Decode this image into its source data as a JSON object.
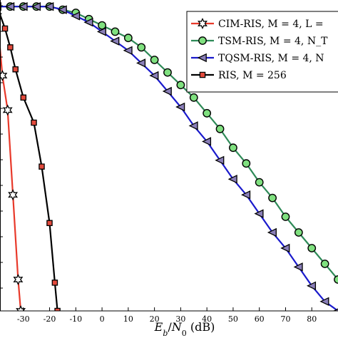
{
  "chart_data": {
    "type": "line",
    "title": "",
    "xlabel": "Eb/N0 (dB)",
    "ylabel": "",
    "xlim": [
      -40,
      90
    ],
    "ylim": [
      0,
      1
    ],
    "grid": false,
    "legend_position": "top-right",
    "x_ticks": [
      -30,
      -20,
      -10,
      0,
      10,
      20,
      30,
      40,
      50,
      60,
      70,
      80
    ],
    "series": [
      {
        "name": "CIM-RIS, M = 4, L =",
        "color": "#e8392a",
        "marker": "hexagram",
        "points": [
          [
            -40,
            0.94
          ],
          [
            -38,
            0.75
          ],
          [
            -36,
            0.64
          ],
          [
            -34,
            0.37
          ],
          [
            -32,
            0.1
          ],
          [
            -31,
            0.0
          ]
        ]
      },
      {
        "name": "TSM-RIS, M = 4, N_T",
        "color": "#2e8a57",
        "marker": "circle",
        "points": [
          [
            -40,
            0.97
          ],
          [
            -35,
            0.97
          ],
          [
            -30,
            0.97
          ],
          [
            -25,
            0.97
          ],
          [
            -20,
            0.97
          ],
          [
            -15,
            0.96
          ],
          [
            -10,
            0.95
          ],
          [
            -5,
            0.93
          ],
          [
            0,
            0.91
          ],
          [
            5,
            0.89
          ],
          [
            10,
            0.87
          ],
          [
            15,
            0.84
          ],
          [
            20,
            0.8
          ],
          [
            25,
            0.76
          ],
          [
            30,
            0.72
          ],
          [
            35,
            0.68
          ],
          [
            40,
            0.63
          ],
          [
            45,
            0.58
          ],
          [
            50,
            0.52
          ],
          [
            55,
            0.47
          ],
          [
            60,
            0.41
          ],
          [
            65,
            0.36
          ],
          [
            70,
            0.3
          ],
          [
            75,
            0.25
          ],
          [
            80,
            0.2
          ],
          [
            85,
            0.15
          ],
          [
            90,
            0.1
          ]
        ]
      },
      {
        "name": "TQSM-RIS, M = 4, N",
        "color": "#1a1acc",
        "marker": "triangle-left",
        "points": [
          [
            -40,
            0.97
          ],
          [
            -35,
            0.97
          ],
          [
            -30,
            0.97
          ],
          [
            -25,
            0.97
          ],
          [
            -20,
            0.97
          ],
          [
            -15,
            0.96
          ],
          [
            -10,
            0.94
          ],
          [
            -5,
            0.92
          ],
          [
            0,
            0.89
          ],
          [
            5,
            0.86
          ],
          [
            10,
            0.83
          ],
          [
            15,
            0.79
          ],
          [
            20,
            0.75
          ],
          [
            25,
            0.7
          ],
          [
            30,
            0.65
          ],
          [
            35,
            0.59
          ],
          [
            40,
            0.54
          ],
          [
            45,
            0.48
          ],
          [
            50,
            0.42
          ],
          [
            55,
            0.37
          ],
          [
            60,
            0.31
          ],
          [
            65,
            0.25
          ],
          [
            70,
            0.2
          ],
          [
            75,
            0.14
          ],
          [
            80,
            0.08
          ],
          [
            85,
            0.03
          ],
          [
            90,
            0.0
          ]
        ]
      },
      {
        "name": "RIS, M = 256",
        "color": "#c0302a",
        "marker": "square",
        "points": [
          [
            -40,
            0.97
          ],
          [
            -37,
            0.9
          ],
          [
            -35,
            0.84
          ],
          [
            -33,
            0.77
          ],
          [
            -30,
            0.68
          ],
          [
            -26,
            0.6
          ],
          [
            -23,
            0.46
          ],
          [
            -20,
            0.28
          ],
          [
            -18,
            0.09
          ],
          [
            -17,
            0.0
          ]
        ]
      }
    ]
  }
}
